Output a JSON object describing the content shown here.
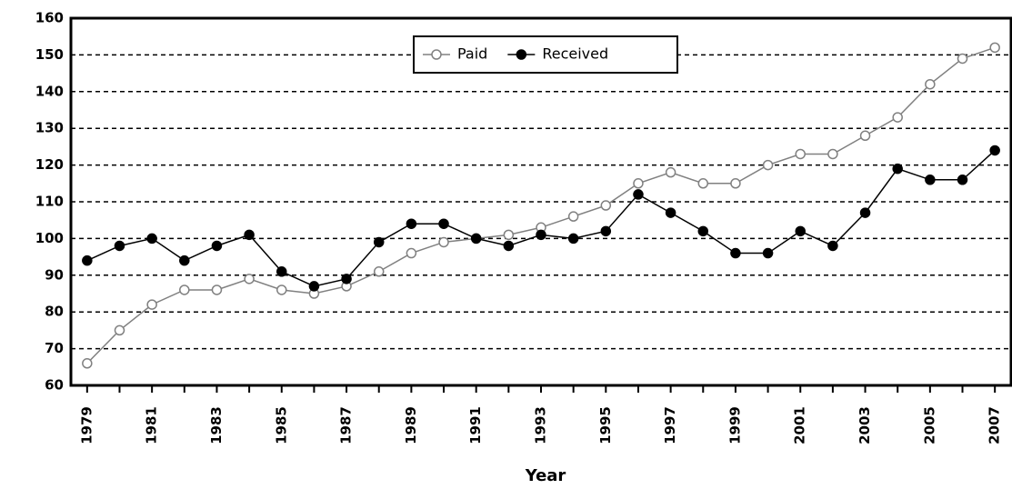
{
  "chart_data": {
    "type": "line",
    "x_label": "Year",
    "x": [
      1979,
      1980,
      1981,
      1982,
      1983,
      1984,
      1985,
      1986,
      1987,
      1988,
      1989,
      1990,
      1991,
      1992,
      1993,
      1994,
      1995,
      1996,
      1997,
      1998,
      1999,
      2000,
      2001,
      2002,
      2003,
      2004,
      2005,
      2006,
      2007
    ],
    "series": [
      {
        "name": "Paid",
        "color": "#808080",
        "marker": "open",
        "values": [
          66,
          75,
          82,
          86,
          86,
          89,
          86,
          85,
          87,
          91,
          96,
          99,
          100,
          101,
          103,
          106,
          109,
          115,
          118,
          115,
          115,
          120,
          123,
          123,
          128,
          133,
          142,
          149,
          152
        ]
      },
      {
        "name": "Received",
        "color": "#000000",
        "marker": "filled",
        "values": [
          94,
          98,
          100,
          94,
          98,
          101,
          91,
          87,
          89,
          99,
          104,
          104,
          100,
          98,
          101,
          100,
          102,
          112,
          107,
          102,
          96,
          96,
          102,
          98,
          107,
          119,
          116,
          116,
          124
        ]
      }
    ],
    "xlim": [
      1978.5,
      2007.5
    ],
    "xticks": [
      1979,
      1981,
      1983,
      1985,
      1987,
      1989,
      1991,
      1993,
      1995,
      1997,
      1999,
      2001,
      2003,
      2005,
      2007
    ],
    "ylim": [
      60,
      160
    ],
    "yticks": [
      60,
      70,
      80,
      90,
      100,
      110,
      120,
      130,
      140,
      150,
      160
    ],
    "grid": true,
    "legend": "top"
  }
}
